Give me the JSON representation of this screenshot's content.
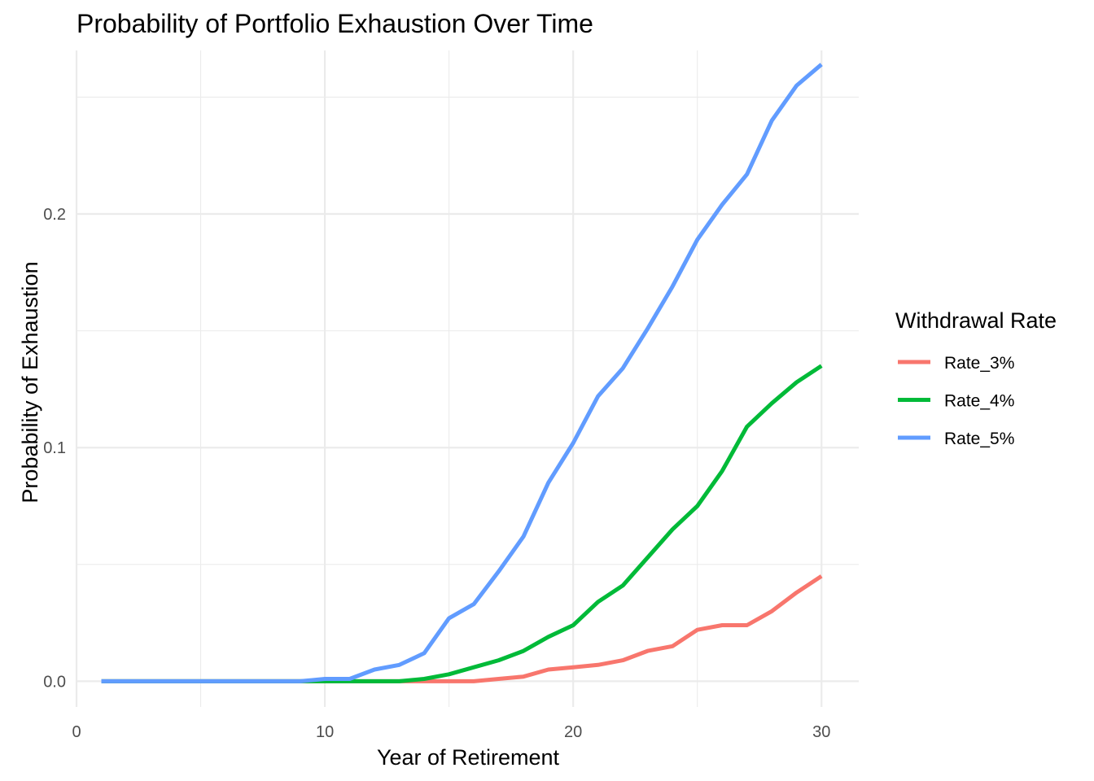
{
  "chart_data": {
    "type": "line",
    "title": "Probability of Portfolio Exhaustion Over Time",
    "xlabel": "Year of Retirement",
    "ylabel": "Probability of Exhaustion",
    "xlim": [
      0,
      31.5
    ],
    "ylim": [
      -0.011,
      0.27
    ],
    "x_ticks": [
      0,
      10,
      20,
      30
    ],
    "x_tick_labels": [
      "0",
      "10",
      "20",
      "30"
    ],
    "y_ticks": [
      0.0,
      0.1,
      0.2
    ],
    "y_tick_labels": [
      "0.0",
      "0.1",
      "0.2"
    ],
    "grid": true,
    "legend": {
      "title": "Withdrawal Rate",
      "position": "right"
    },
    "x": [
      1,
      2,
      3,
      4,
      5,
      6,
      7,
      8,
      9,
      10,
      11,
      12,
      13,
      14,
      15,
      16,
      17,
      18,
      19,
      20,
      21,
      22,
      23,
      24,
      25,
      26,
      27,
      28,
      29,
      30
    ],
    "series": [
      {
        "name": "Rate_3%",
        "color": "#F8766D",
        "values": [
          0,
          0,
          0,
          0,
          0,
          0,
          0,
          0,
          0,
          0,
          0,
          0,
          0,
          0,
          0,
          0,
          0.001,
          0.002,
          0.005,
          0.006,
          0.007,
          0.009,
          0.013,
          0.015,
          0.022,
          0.024,
          0.024,
          0.03,
          0.038,
          0.045
        ]
      },
      {
        "name": "Rate_4%",
        "color": "#00BA38",
        "values": [
          0,
          0,
          0,
          0,
          0,
          0,
          0,
          0,
          0,
          0,
          0,
          0,
          0,
          0.001,
          0.003,
          0.006,
          0.009,
          0.013,
          0.019,
          0.024,
          0.034,
          0.041,
          0.053,
          0.065,
          0.075,
          0.09,
          0.109,
          0.119,
          0.128,
          0.135
        ]
      },
      {
        "name": "Rate_5%",
        "color": "#619CFF",
        "values": [
          0,
          0,
          0,
          0,
          0,
          0,
          0,
          0,
          0,
          0.001,
          0.001,
          0.005,
          0.007,
          0.012,
          0.027,
          0.033,
          0.047,
          0.062,
          0.085,
          0.102,
          0.122,
          0.134,
          0.151,
          0.169,
          0.189,
          0.204,
          0.217,
          0.24,
          0.255,
          0.264
        ]
      }
    ]
  }
}
